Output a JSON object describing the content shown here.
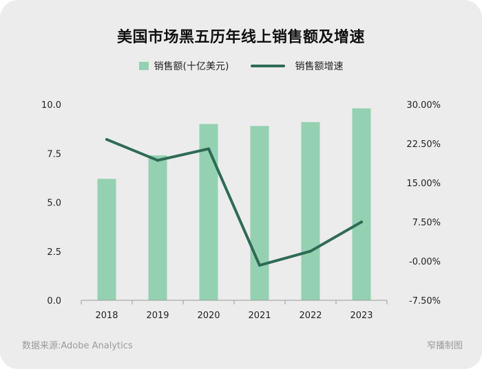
{
  "chart_data": {
    "type": "bar",
    "title": "美国市场黑五历年线上销售额及增速",
    "categories": [
      "2018",
      "2019",
      "2020",
      "2021",
      "2022",
      "2023"
    ],
    "series": [
      {
        "name": "销售额(十亿美元)",
        "type": "bar",
        "axis": "left",
        "values": [
          6.2,
          7.4,
          9.0,
          8.9,
          9.1,
          9.8
        ],
        "color": "#93d1b2"
      },
      {
        "name": "销售额增速",
        "type": "line",
        "axis": "right",
        "values": [
          23.3,
          19.3,
          21.5,
          -0.8,
          1.9,
          7.5
        ],
        "color": "#2e6b55"
      }
    ],
    "y_left": {
      "ylim": [
        0,
        10
      ],
      "ticks": [
        "0.0",
        "2.5",
        "5.0",
        "7.5",
        "10.0"
      ],
      "tick_values": [
        0,
        2.5,
        5,
        7.5,
        10
      ]
    },
    "y_right": {
      "ylim": [
        -7.5,
        30
      ],
      "ticks": [
        "-7.50%",
        "-0.00%",
        "7.50%",
        "15.00%",
        "22.50%",
        "30.00%"
      ],
      "tick_values": [
        -7.5,
        0,
        7.5,
        15,
        22.5,
        30
      ]
    },
    "legend_position": "top-center",
    "grid": false
  },
  "footer": {
    "source": "数据来源:Adobe Analytics",
    "credit": "窄播制图"
  }
}
